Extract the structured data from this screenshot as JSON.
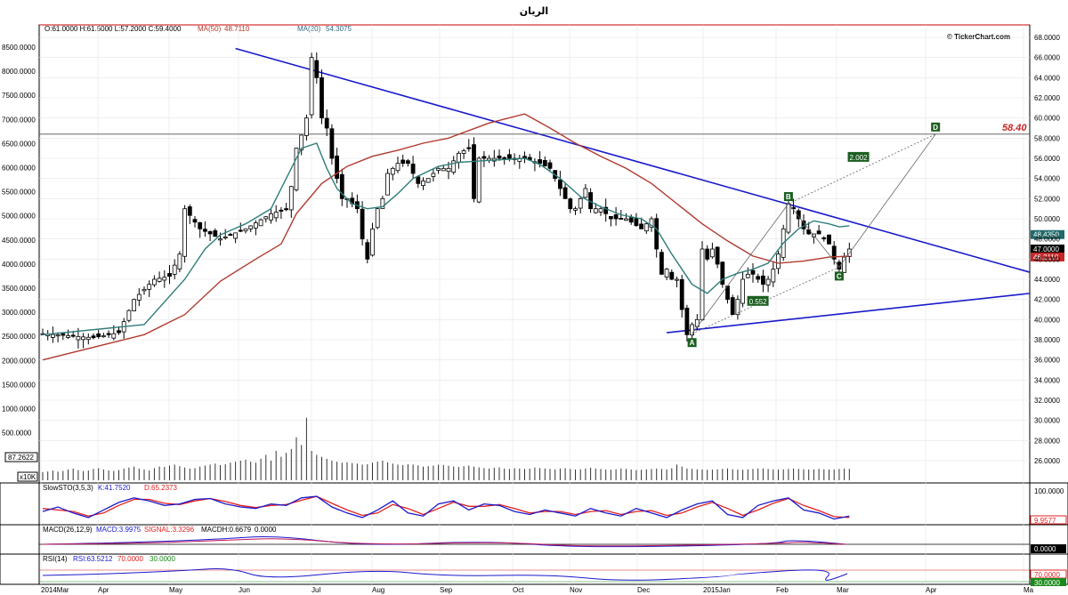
{
  "title": "الريان",
  "header": {
    "ohlc": "O:61.0000  H:61.5000  L:57.2000  C:59.4000",
    "ma50_label": "MA(50)",
    "ma50_value": "48.7110",
    "ma20_label": "MA(20)",
    "ma20_value": "54.3075",
    "watermark": "© TickerChart.com"
  },
  "colors": {
    "candle_up": "#ffffff",
    "candle_down": "#000000",
    "ma50": "#b03a2e",
    "ma20": "#2e7d7a",
    "trendline": "#1a1acc",
    "stoch_k": "#1a1acc",
    "stoch_d": "#e02020",
    "label_box": "#1b5e20",
    "frame": "#cc0000"
  },
  "chart_data": [
    {
      "type": "candlestick",
      "panel": "price",
      "x_ticks": [
        "2014Mar",
        "Apr",
        "May",
        "Jun",
        "Jul",
        "Aug",
        "Sep",
        "Oct",
        "Nov",
        "Dec",
        "2015Jan",
        "Feb",
        "Mar",
        "Apr",
        "Ma"
      ],
      "right_axis": [
        "68.0000",
        "66.0000",
        "64.0000",
        "62.0000",
        "60.0000",
        "58.0000",
        "56.0000",
        "54.0000",
        "52.0000",
        "50.0000",
        "48.0000",
        "46.0000",
        "44.0000",
        "42.0000",
        "40.0000",
        "38.0000",
        "36.0000",
        "34.0000",
        "32.0000",
        "30.0000",
        "28.0000",
        "26.0000"
      ],
      "left_axis": [
        "8500.0000",
        "8000.0000",
        "7500.0000",
        "7000.0000",
        "6500.0000",
        "6000.0000",
        "5500.0000",
        "5000.0000",
        "4500.0000",
        "4000.0000",
        "3500.0000",
        "3000.0000",
        "2500.0000",
        "2000.0000",
        "1500.0000",
        "1000.0000",
        "500.0000"
      ],
      "ylim": [
        25,
        69
      ],
      "price_path": [
        [
          0,
          38.6
        ],
        [
          5,
          38.4
        ],
        [
          10,
          38.2
        ],
        [
          15,
          38.7
        ],
        [
          18,
          42
        ],
        [
          22,
          44
        ],
        [
          25,
          44.3
        ],
        [
          27,
          46.5
        ],
        [
          28,
          51
        ],
        [
          31,
          49
        ],
        [
          35,
          48
        ],
        [
          40,
          49
        ],
        [
          45,
          50.5
        ],
        [
          48,
          51
        ],
        [
          49,
          53.2
        ],
        [
          50,
          57
        ],
        [
          51,
          58.3
        ],
        [
          52,
          60
        ],
        [
          53,
          66
        ],
        [
          54,
          64
        ],
        [
          55,
          60
        ],
        [
          56,
          59
        ],
        [
          57,
          56
        ],
        [
          58,
          54
        ],
        [
          59,
          52
        ],
        [
          60,
          52
        ],
        [
          62,
          51
        ],
        [
          63,
          48
        ],
        [
          64,
          46
        ],
        [
          65,
          49
        ],
        [
          66,
          51
        ],
        [
          67,
          52
        ],
        [
          68,
          54.5
        ],
        [
          70,
          55.5
        ],
        [
          72,
          55.5
        ],
        [
          74,
          53.5
        ],
        [
          76,
          54
        ],
        [
          78,
          55
        ],
        [
          80,
          55
        ],
        [
          82,
          56.5
        ],
        [
          84,
          57
        ],
        [
          85,
          52
        ],
        [
          86,
          56
        ],
        [
          88,
          56
        ],
        [
          90,
          56
        ],
        [
          92,
          56
        ],
        [
          95,
          56
        ],
        [
          98,
          55.5
        ],
        [
          100,
          55
        ],
        [
          102,
          53
        ],
        [
          104,
          51
        ],
        [
          105,
          51
        ],
        [
          107,
          53
        ],
        [
          108,
          51
        ],
        [
          110,
          51
        ],
        [
          112,
          50
        ],
        [
          115,
          50
        ],
        [
          118,
          49
        ],
        [
          120,
          50
        ],
        [
          121,
          47
        ],
        [
          122,
          44.5
        ],
        [
          123,
          45
        ],
        [
          124,
          44
        ],
        [
          125,
          44
        ],
        [
          126,
          41
        ],
        [
          127,
          38.5
        ],
        [
          128,
          39.5
        ],
        [
          129,
          40
        ],
        [
          130,
          47
        ],
        [
          131,
          46
        ],
        [
          132,
          47
        ],
        [
          133,
          45.5
        ],
        [
          134,
          43.5
        ],
        [
          135,
          42
        ],
        [
          136,
          40.5
        ],
        [
          137,
          42
        ],
        [
          138,
          44
        ],
        [
          139,
          44.5
        ],
        [
          140,
          44.5
        ],
        [
          141,
          44
        ],
        [
          142,
          43.5
        ],
        [
          143,
          44
        ],
        [
          144,
          45
        ],
        [
          145,
          46.5
        ],
        [
          146,
          49
        ],
        [
          147,
          51.5
        ],
        [
          148,
          51
        ],
        [
          149,
          50
        ],
        [
          150,
          49
        ],
        [
          151,
          48.5
        ],
        [
          152,
          48.5
        ],
        [
          153,
          48.5
        ],
        [
          154,
          48
        ],
        [
          155,
          47.5
        ],
        [
          156,
          46
        ],
        [
          157,
          45
        ],
        [
          158,
          46.2
        ],
        [
          159,
          47
        ]
      ],
      "ma20_path": [
        [
          0,
          38.5
        ],
        [
          20,
          39.5
        ],
        [
          28,
          44
        ],
        [
          32,
          47
        ],
        [
          35,
          48.4
        ],
        [
          40,
          49.5
        ],
        [
          45,
          51
        ],
        [
          48,
          54
        ],
        [
          51,
          57
        ],
        [
          54,
          57.5
        ],
        [
          56,
          55
        ],
        [
          58,
          53
        ],
        [
          61,
          51.5
        ],
        [
          64,
          51
        ],
        [
          67,
          51.2
        ],
        [
          70,
          52.5
        ],
        [
          73,
          54
        ],
        [
          78,
          55.2
        ],
        [
          82,
          55.6
        ],
        [
          85,
          55.7
        ],
        [
          88,
          55.8
        ],
        [
          92,
          55.9
        ],
        [
          95,
          56
        ],
        [
          98,
          55.4
        ],
        [
          102,
          54
        ],
        [
          106,
          52.2
        ],
        [
          110,
          51.2
        ],
        [
          114,
          50.4
        ],
        [
          118,
          50
        ],
        [
          121,
          49
        ],
        [
          124,
          46.5
        ],
        [
          128,
          43.5
        ],
        [
          131,
          42.6
        ],
        [
          134,
          44
        ],
        [
          137,
          44.6
        ],
        [
          140,
          45
        ],
        [
          143,
          45.6
        ],
        [
          146,
          47.6
        ],
        [
          149,
          49
        ],
        [
          152,
          49.8
        ],
        [
          155,
          49.5
        ],
        [
          157,
          49.2
        ],
        [
          159,
          49.3
        ]
      ],
      "ma50_path": [
        [
          0,
          36
        ],
        [
          20,
          38.5
        ],
        [
          28,
          40.5
        ],
        [
          35,
          43.8
        ],
        [
          42,
          46
        ],
        [
          47,
          47.5
        ],
        [
          50,
          50.5
        ],
        [
          55,
          53.5
        ],
        [
          60,
          55.2
        ],
        [
          65,
          56.2
        ],
        [
          70,
          56.8
        ],
        [
          75,
          57.5
        ],
        [
          80,
          58
        ],
        [
          88,
          59.5
        ],
        [
          95,
          60.4
        ],
        [
          100,
          59
        ],
        [
          105,
          57.5
        ],
        [
          110,
          56.2
        ],
        [
          115,
          55
        ],
        [
          120,
          53.5
        ],
        [
          125,
          51.5
        ],
        [
          130,
          49.5
        ],
        [
          135,
          47.8
        ],
        [
          140,
          46.3
        ],
        [
          145,
          45.6
        ],
        [
          150,
          45.8
        ],
        [
          155,
          46.2
        ],
        [
          159,
          46.3
        ]
      ],
      "volume_rel": [
        0.42,
        0.45,
        0.5,
        0.44,
        0.48,
        0.55,
        0.6,
        0.52,
        0.47,
        0.5,
        0.58,
        0.62,
        0.55,
        0.5,
        0.48,
        0.52,
        0.6,
        0.65,
        0.7,
        0.6,
        0.55,
        0.5,
        0.62,
        0.7,
        0.68,
        0.75,
        0.8,
        0.72,
        0.65,
        0.6,
        0.62,
        0.7,
        0.75,
        0.8,
        0.85,
        0.78,
        0.82,
        0.9,
        0.95,
        1.0,
        1.05,
        0.95,
        0.9,
        1.1,
        1.3,
        1.0,
        1.5,
        1.2,
        1.4,
        1.6,
        2.2,
        1.8,
        3.2,
        1.5,
        1.3,
        1.2,
        1.1,
        1.0,
        0.95,
        0.9,
        0.92,
        0.88,
        0.85,
        0.8,
        0.82,
        0.9,
        0.95,
        1.0,
        0.92,
        0.85,
        0.8,
        0.78,
        0.82,
        0.8,
        0.76,
        0.7,
        0.72,
        0.75,
        0.8,
        0.78,
        0.74,
        0.7,
        0.68,
        0.72,
        0.75,
        0.7,
        0.66,
        0.62,
        0.6,
        0.64,
        0.66,
        0.6,
        0.58,
        0.62,
        0.6,
        0.58,
        0.6,
        0.65,
        0.62,
        0.6,
        0.58,
        0.56,
        0.6,
        0.62,
        0.58,
        0.55,
        0.56,
        0.6,
        0.64,
        0.6,
        0.58,
        0.55,
        0.54,
        0.56,
        0.6,
        0.58,
        0.55,
        0.52,
        0.54,
        0.56,
        0.58,
        0.6,
        0.58,
        0.56,
        0.62,
        0.8,
        0.7,
        0.6,
        0.58,
        0.56,
        0.55,
        0.54,
        0.55,
        0.56,
        0.58,
        0.6,
        0.56,
        0.55,
        0.54,
        0.56,
        0.58,
        0.6,
        0.6,
        0.58,
        0.56,
        0.55,
        0.56,
        0.58,
        0.6,
        0.58,
        0.56,
        0.55,
        0.56,
        0.58,
        0.56,
        0.55,
        0.56,
        0.58,
        0.6,
        0.58
      ],
      "points": [
        {
          "label": "A",
          "bar": 128,
          "price": 38.6
        },
        {
          "label": "B",
          "bar": 147,
          "price": 51.5
        },
        {
          "label": "C",
          "bar": 157,
          "price": 45.2
        },
        {
          "label": "D",
          "bar": 176,
          "price": 58.4
        }
      ],
      "ratios": [
        "0.552",
        "2.002"
      ],
      "target_level": "58.40",
      "target_price": 58.4,
      "price_tags": [
        {
          "text": "48.4350",
          "price": 48.435,
          "color": "#1f6a6a"
        },
        {
          "text": "47.0000",
          "price": 47.0,
          "color": "#000000"
        },
        {
          "text": "46.2110",
          "price": 46.211,
          "color": "#c62828"
        }
      ],
      "volume_tag": "87.2622",
      "volume_scale": "x10K"
    },
    {
      "type": "line",
      "panel": "stochastic",
      "label": "SlowSTO(3,5,3)",
      "k": "K:41.7520",
      "d": "D:65.2373",
      "axis_top": "100.0000",
      "tag": "9.9577",
      "ylim": [
        0,
        100
      ],
      "k_path": [
        [
          0,
          35
        ],
        [
          3,
          50
        ],
        [
          6,
          30
        ],
        [
          9,
          15
        ],
        [
          12,
          40
        ],
        [
          15,
          65
        ],
        [
          18,
          80
        ],
        [
          21,
          70
        ],
        [
          24,
          55
        ],
        [
          27,
          60
        ],
        [
          30,
          75
        ],
        [
          33,
          78
        ],
        [
          36,
          60
        ],
        [
          39,
          50
        ],
        [
          42,
          45
        ],
        [
          45,
          60
        ],
        [
          48,
          55
        ],
        [
          51,
          80
        ],
        [
          54,
          85
        ],
        [
          57,
          50
        ],
        [
          60,
          30
        ],
        [
          63,
          15
        ],
        [
          66,
          40
        ],
        [
          69,
          70
        ],
        [
          72,
          30
        ],
        [
          75,
          20
        ],
        [
          78,
          60
        ],
        [
          81,
          70
        ],
        [
          84,
          40
        ],
        [
          87,
          60
        ],
        [
          90,
          55
        ],
        [
          93,
          35
        ],
        [
          96,
          25
        ],
        [
          99,
          40
        ],
        [
          102,
          30
        ],
        [
          105,
          20
        ],
        [
          108,
          45
        ],
        [
          111,
          30
        ],
        [
          114,
          20
        ],
        [
          117,
          45
        ],
        [
          120,
          30
        ],
        [
          123,
          15
        ],
        [
          126,
          40
        ],
        [
          129,
          60
        ],
        [
          132,
          70
        ],
        [
          135,
          25
        ],
        [
          138,
          15
        ],
        [
          141,
          55
        ],
        [
          144,
          70
        ],
        [
          147,
          80
        ],
        [
          150,
          40
        ],
        [
          153,
          30
        ],
        [
          156,
          10
        ],
        [
          159,
          20
        ]
      ],
      "d_path": [
        [
          0,
          45
        ],
        [
          3,
          40
        ],
        [
          6,
          35
        ],
        [
          9,
          20
        ],
        [
          12,
          30
        ],
        [
          15,
          55
        ],
        [
          18,
          75
        ],
        [
          21,
          75
        ],
        [
          24,
          62
        ],
        [
          27,
          58
        ],
        [
          30,
          70
        ],
        [
          33,
          78
        ],
        [
          36,
          68
        ],
        [
          39,
          55
        ],
        [
          42,
          48
        ],
        [
          45,
          55
        ],
        [
          48,
          58
        ],
        [
          51,
          72
        ],
        [
          54,
          85
        ],
        [
          57,
          62
        ],
        [
          60,
          40
        ],
        [
          63,
          22
        ],
        [
          66,
          30
        ],
        [
          69,
          58
        ],
        [
          72,
          45
        ],
        [
          75,
          25
        ],
        [
          78,
          45
        ],
        [
          81,
          66
        ],
        [
          84,
          52
        ],
        [
          87,
          52
        ],
        [
          90,
          58
        ],
        [
          93,
          45
        ],
        [
          96,
          30
        ],
        [
          99,
          35
        ],
        [
          102,
          35
        ],
        [
          105,
          25
        ],
        [
          108,
          35
        ],
        [
          111,
          38
        ],
        [
          114,
          25
        ],
        [
          117,
          35
        ],
        [
          120,
          38
        ],
        [
          123,
          22
        ],
        [
          126,
          30
        ],
        [
          129,
          50
        ],
        [
          132,
          65
        ],
        [
          135,
          45
        ],
        [
          138,
          22
        ],
        [
          141,
          40
        ],
        [
          144,
          62
        ],
        [
          147,
          78
        ],
        [
          150,
          55
        ],
        [
          153,
          38
        ],
        [
          156,
          18
        ],
        [
          159,
          15
        ]
      ]
    },
    {
      "type": "line",
      "panel": "macd",
      "label": "MACD(26,12,9)",
      "macd": "MACD:3.9975",
      "signal": "SIGNAL:3.3296",
      "macdh": "MACDH:0.6679",
      "zero": "0.0000",
      "tag": "0.0000"
    },
    {
      "type": "line",
      "panel": "rsi",
      "label": "RSI(14)",
      "rsi": "RSI:63.5212",
      "level_high": "70.0000",
      "level_low": "30.0000",
      "ylim": [
        20,
        90
      ]
    }
  ]
}
